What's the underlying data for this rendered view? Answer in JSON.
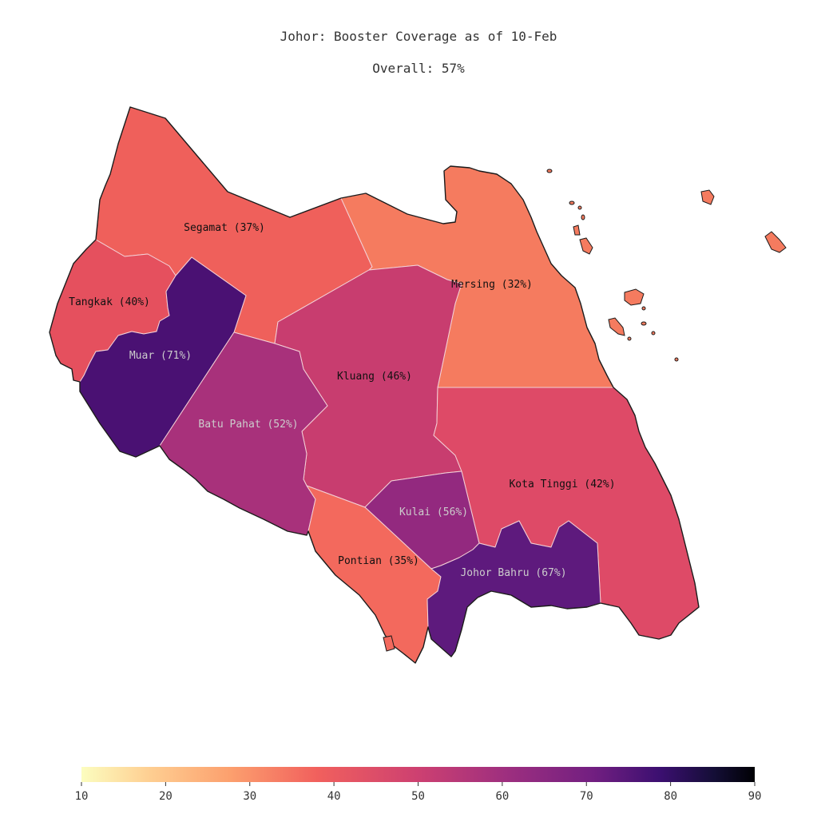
{
  "title": "Johor: Booster Coverage as of 10-Feb",
  "subtitle": "Overall: 57%",
  "districts": [
    {
      "name": "Segamat",
      "label": "Segamat (37%)",
      "value": 37,
      "fill": "#ef605b",
      "text_color": "#111111"
    },
    {
      "name": "Mersing",
      "label": "Mersing (32%)",
      "value": 32,
      "fill": "#f57b5f",
      "text_color": "#111111"
    },
    {
      "name": "Tangkak",
      "label": "Tangkak (40%)",
      "value": 40,
      "fill": "#e5505e",
      "text_color": "#111111"
    },
    {
      "name": "Muar",
      "label": "Muar (71%)",
      "value": 71,
      "fill": "#4a1173",
      "text_color": "#cccccc"
    },
    {
      "name": "Kluang",
      "label": "Kluang (46%)",
      "value": 46,
      "fill": "#c83d6f",
      "text_color": "#111111"
    },
    {
      "name": "Batu Pahat",
      "label": "Batu Pahat (52%)",
      "value": 52,
      "fill": "#a8317b",
      "text_color": "#cccccc"
    },
    {
      "name": "Kota Tinggi",
      "label": "Kota Tinggi (42%)",
      "value": 42,
      "fill": "#de4a67",
      "text_color": "#111111"
    },
    {
      "name": "Kulai",
      "label": "Kulai (56%)",
      "value": 56,
      "fill": "#93297f",
      "text_color": "#cccccc"
    },
    {
      "name": "Pontian",
      "label": "Pontian (35%)",
      "value": 35,
      "fill": "#f3695d",
      "text_color": "#111111"
    },
    {
      "name": "Johor Bahru",
      "label": "Johor Bahru (67%)",
      "value": 67,
      "fill": "#5e1a7d",
      "text_color": "#cccccc"
    }
  ],
  "colorbar": {
    "min": 10,
    "max": 90,
    "ticks": [
      "10",
      "20",
      "30",
      "40",
      "50",
      "60",
      "70",
      "80",
      "90"
    ],
    "colormap": "magma_r"
  }
}
